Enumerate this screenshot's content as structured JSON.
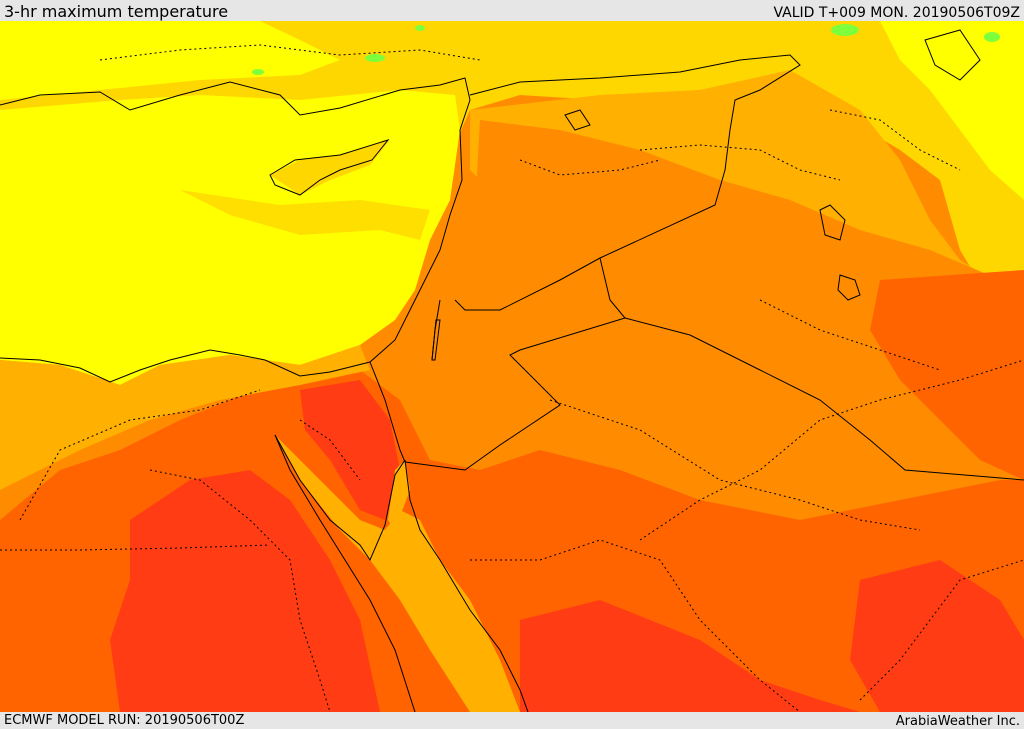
{
  "header": {
    "title": "3-hr maximum temperature",
    "valid": "VALID T+009 MON. 20190506T09Z"
  },
  "footer": {
    "model_run": "ECMWF MODEL RUN: 20190506T00Z",
    "credit": "ArabiaWeather Inc."
  },
  "palette": {
    "coolest": "#ffff00",
    "cool": "#ffd700",
    "mild": "#ffb000",
    "warm": "#ff8c00",
    "hot": "#ff6400",
    "hottest": "#ff3c14",
    "green": "#7dff3c",
    "borders": "#000000"
  }
}
